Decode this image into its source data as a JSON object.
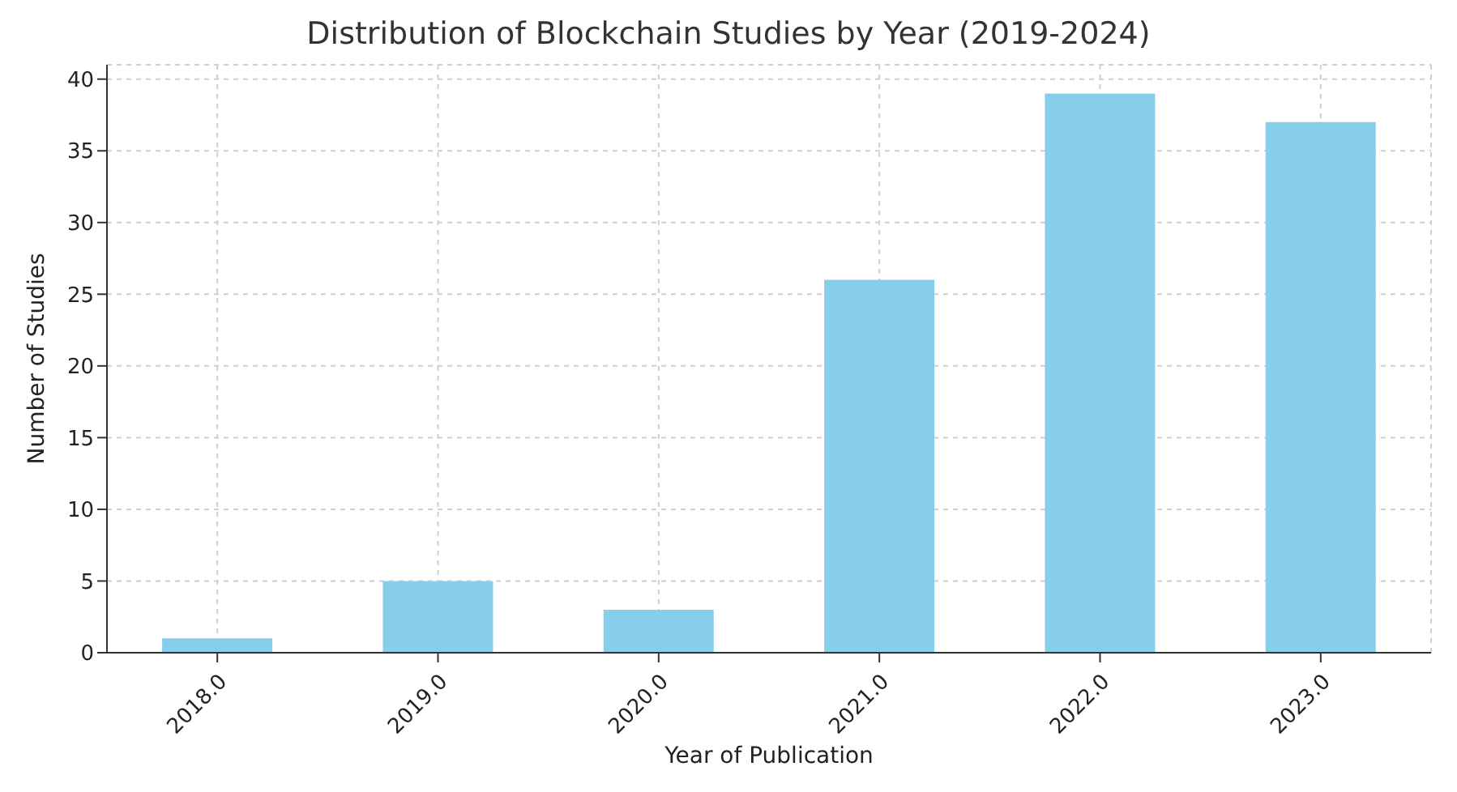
{
  "chart_data": {
    "type": "bar",
    "title": "Distribution of Blockchain Studies by Year (2019-2024)",
    "xlabel": "Year of Publication",
    "ylabel": "Number of Studies",
    "categories": [
      "2018.0",
      "2019.0",
      "2020.0",
      "2021.0",
      "2022.0",
      "2023.0"
    ],
    "values": [
      1,
      5,
      3,
      26,
      39,
      37
    ],
    "color": "#87ceeb",
    "ylim": [
      0,
      41
    ],
    "yticks": [
      0,
      5,
      10,
      15,
      20,
      25,
      30,
      35,
      40
    ],
    "grid": true
  }
}
